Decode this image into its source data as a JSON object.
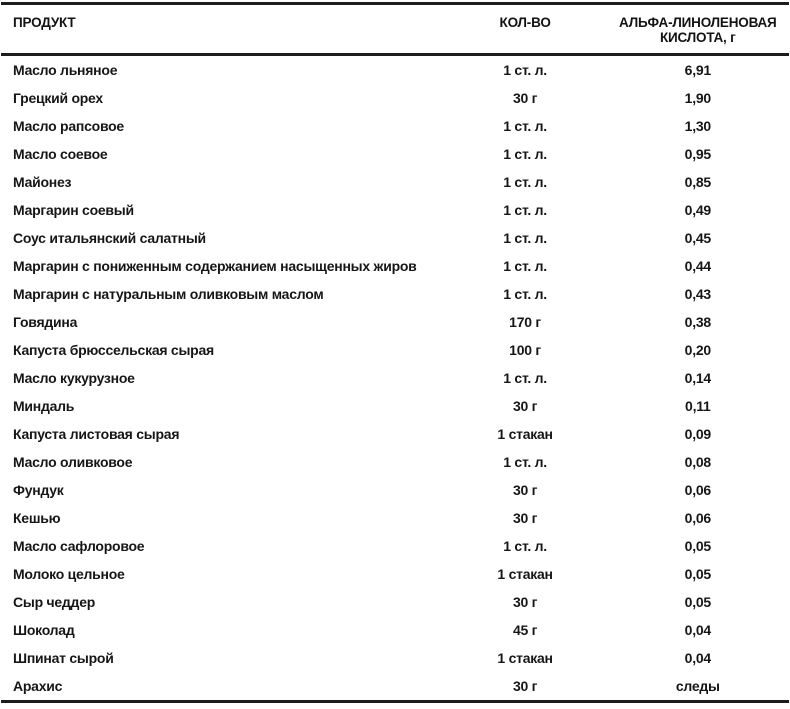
{
  "table": {
    "columns": [
      {
        "label": "ПРОДУКТ",
        "align": "left"
      },
      {
        "label": "КОЛ-ВО",
        "align": "center"
      },
      {
        "label": "АЛЬФА-ЛИНОЛЕНОВАЯ КИСЛОТА, г",
        "align": "center"
      }
    ],
    "rows": [
      {
        "product": "Масло льняное",
        "quantity": "1 ст. л.",
        "value": "6,91"
      },
      {
        "product": "Грецкий орех",
        "quantity": "30 г",
        "value": "1,90"
      },
      {
        "product": "Масло рапсовое",
        "quantity": "1 ст. л.",
        "value": "1,30"
      },
      {
        "product": "Масло соевое",
        "quantity": "1 ст. л.",
        "value": "0,95"
      },
      {
        "product": "Майонез",
        "quantity": "1 ст. л.",
        "value": "0,85"
      },
      {
        "product": "Маргарин соевый",
        "quantity": "1 ст. л.",
        "value": "0,49"
      },
      {
        "product": "Соус итальянский салатный",
        "quantity": "1 ст. л.",
        "value": "0,45"
      },
      {
        "product": "Маргарин с пониженным содержанием насыщенных жиров",
        "quantity": "1 ст. л.",
        "value": "0,44"
      },
      {
        "product": "Маргарин с натуральным оливковым маслом",
        "quantity": "1 ст. л.",
        "value": "0,43"
      },
      {
        "product": "Говядина",
        "quantity": "170 г",
        "value": "0,38"
      },
      {
        "product": "Капуста брюссельская сырая",
        "quantity": "100 г",
        "value": "0,20"
      },
      {
        "product": "Масло кукурузное",
        "quantity": "1 ст. л.",
        "value": "0,14"
      },
      {
        "product": "Миндаль",
        "quantity": "30 г",
        "value": "0,11"
      },
      {
        "product": "Капуста листовая сырая",
        "quantity": "1 стакан",
        "value": "0,09"
      },
      {
        "product": "Масло оливковое",
        "quantity": "1 ст. л.",
        "value": "0,08"
      },
      {
        "product": "Фундук",
        "quantity": "30 г",
        "value": "0,06"
      },
      {
        "product": "Кешью",
        "quantity": "30 г",
        "value": "0,06"
      },
      {
        "product": "Масло сафлоровое",
        "quantity": "1 ст. л.",
        "value": "0,05"
      },
      {
        "product": "Молоко цельное",
        "quantity": "1 стакан",
        "value": "0,05"
      },
      {
        "product": "Сыр чеддер",
        "quantity": "30 г",
        "value": "0,05"
      },
      {
        "product": "Шоколад",
        "quantity": "45 г",
        "value": "0,04"
      },
      {
        "product": "Шпинат сырой",
        "quantity": "1 стакан",
        "value": "0,04"
      },
      {
        "product": "Арахис",
        "quantity": "30 г",
        "value": "следы"
      }
    ]
  }
}
